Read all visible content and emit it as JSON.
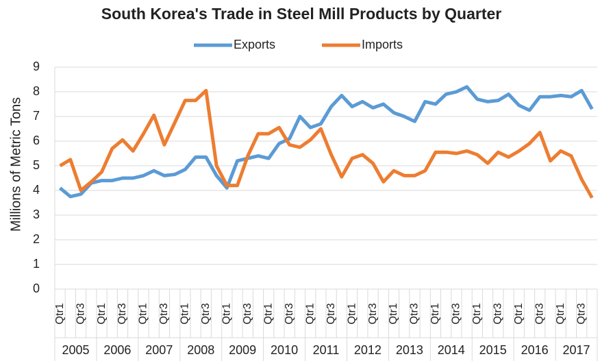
{
  "chart_data": {
    "type": "line",
    "title": "South Korea's Trade in Steel Mill Products by Quarter",
    "y_label": "Millions of Metric Tons",
    "categories": [
      "Qtr1",
      null,
      "Qtr3",
      null,
      "Qtr1",
      null,
      "Qtr3",
      null,
      "Qtr1",
      null,
      "Qtr3",
      null,
      "Qtr1",
      null,
      "Qtr3",
      null,
      "Qtr1",
      null,
      "Qtr3",
      null,
      "Qtr1",
      null,
      "Qtr3",
      null,
      "Qtr1",
      null,
      "Qtr3",
      null,
      "Qtr1",
      null,
      "Qtr3",
      null,
      "Qtr1",
      null,
      "Qtr3",
      null,
      "Qtr1",
      null,
      "Qtr3",
      null,
      "Qtr1",
      null,
      "Qtr3",
      null,
      "Qtr1",
      null,
      "Qtr3",
      null,
      "Qtr1",
      null,
      "Qtr3",
      null
    ],
    "groups": [
      "2005",
      "2006",
      "2007",
      "2008",
      "2009",
      "2010",
      "2011",
      "2012",
      "2013",
      "2014",
      "2015",
      "2016",
      "2017"
    ],
    "series": [
      {
        "name": "Exports",
        "color": "#5b9bd5",
        "values": [
          4.1,
          3.75,
          3.85,
          4.3,
          4.4,
          4.4,
          4.5,
          4.5,
          4.6,
          4.8,
          4.6,
          4.65,
          4.85,
          5.35,
          5.35,
          4.6,
          4.1,
          5.2,
          5.3,
          5.4,
          5.3,
          5.9,
          6.1,
          7.0,
          6.55,
          6.7,
          7.4,
          7.85,
          7.4,
          7.6,
          7.35,
          7.5,
          7.15,
          7.0,
          6.8,
          7.6,
          7.5,
          7.9,
          8.0,
          8.2,
          7.7,
          7.6,
          7.65,
          7.9,
          7.45,
          7.25,
          7.8,
          7.8,
          7.85,
          7.8,
          8.05,
          7.3
        ]
      },
      {
        "name": "Imports",
        "color": "#ed7d31",
        "values": [
          5.0,
          5.25,
          4.0,
          4.35,
          4.75,
          5.7,
          6.05,
          5.6,
          6.3,
          7.05,
          5.85,
          6.75,
          7.65,
          7.65,
          8.05,
          5.0,
          4.2,
          4.2,
          5.4,
          6.3,
          6.3,
          6.55,
          5.85,
          5.75,
          6.05,
          6.5,
          5.45,
          4.55,
          5.3,
          5.45,
          5.1,
          4.35,
          4.8,
          4.6,
          4.6,
          4.8,
          5.55,
          5.55,
          5.5,
          5.6,
          5.45,
          5.1,
          5.55,
          5.35,
          5.6,
          5.9,
          6.35,
          5.2,
          5.6,
          5.4,
          4.45,
          3.7
        ]
      }
    ],
    "ylim": [
      0,
      9
    ],
    "yticks": [
      0,
      1,
      2,
      3,
      4,
      5,
      6,
      7,
      8,
      9
    ],
    "grid": true,
    "legend": "top"
  }
}
